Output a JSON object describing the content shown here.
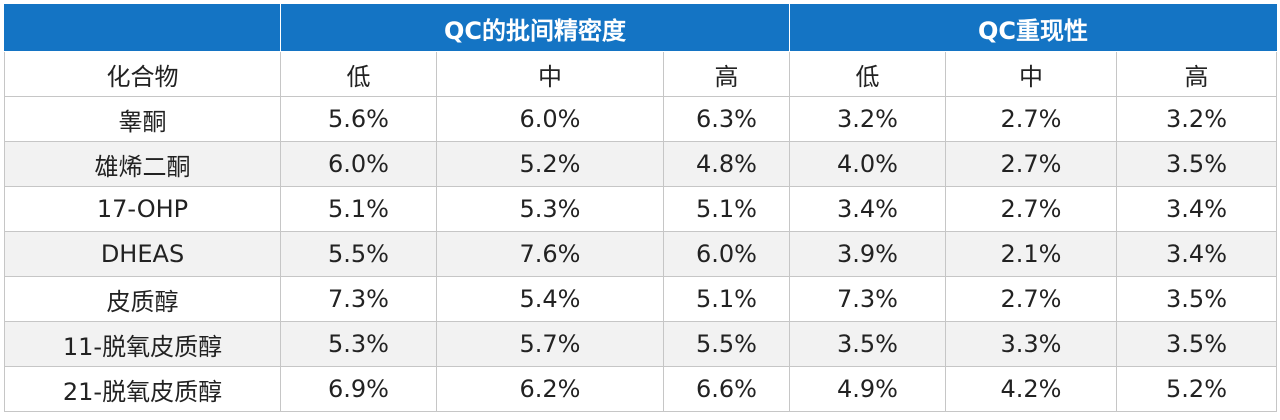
{
  "colors": {
    "header_bg": "#1474c4",
    "header_text": "#ffffff",
    "grid": "#c6c6c6",
    "stripe": "#f2f2f2"
  },
  "groups": [
    "",
    "QC的批间精密度",
    "QC重现性"
  ],
  "subheaders": [
    "化合物",
    "低",
    "中",
    "高",
    "低",
    "中",
    "高"
  ],
  "rows": [
    {
      "compound": "睾酮",
      "values": [
        "5.6%",
        "6.0%",
        "6.3%",
        "3.2%",
        "2.7%",
        "3.2%"
      ]
    },
    {
      "compound": "雄烯二酮",
      "values": [
        "6.0%",
        "5.2%",
        "4.8%",
        "4.0%",
        "2.7%",
        "3.5%"
      ]
    },
    {
      "compound": "17-OHP",
      "values": [
        "5.1%",
        "5.3%",
        "5.1%",
        "3.4%",
        "2.7%",
        "3.4%"
      ]
    },
    {
      "compound": "DHEAS",
      "values": [
        "5.5%",
        "7.6%",
        "6.0%",
        "3.9%",
        "2.1%",
        "3.4%"
      ]
    },
    {
      "compound": "皮质醇",
      "values": [
        "7.3%",
        "5.4%",
        "5.1%",
        "7.3%",
        "2.7%",
        "3.5%"
      ]
    },
    {
      "compound": "11-脱氧皮质醇",
      "values": [
        "5.3%",
        "5.7%",
        "5.5%",
        "3.5%",
        "3.3%",
        "3.5%"
      ]
    },
    {
      "compound": "21-脱氧皮质醇",
      "values": [
        "6.9%",
        "6.2%",
        "6.6%",
        "4.9%",
        "4.2%",
        "5.2%"
      ]
    }
  ]
}
